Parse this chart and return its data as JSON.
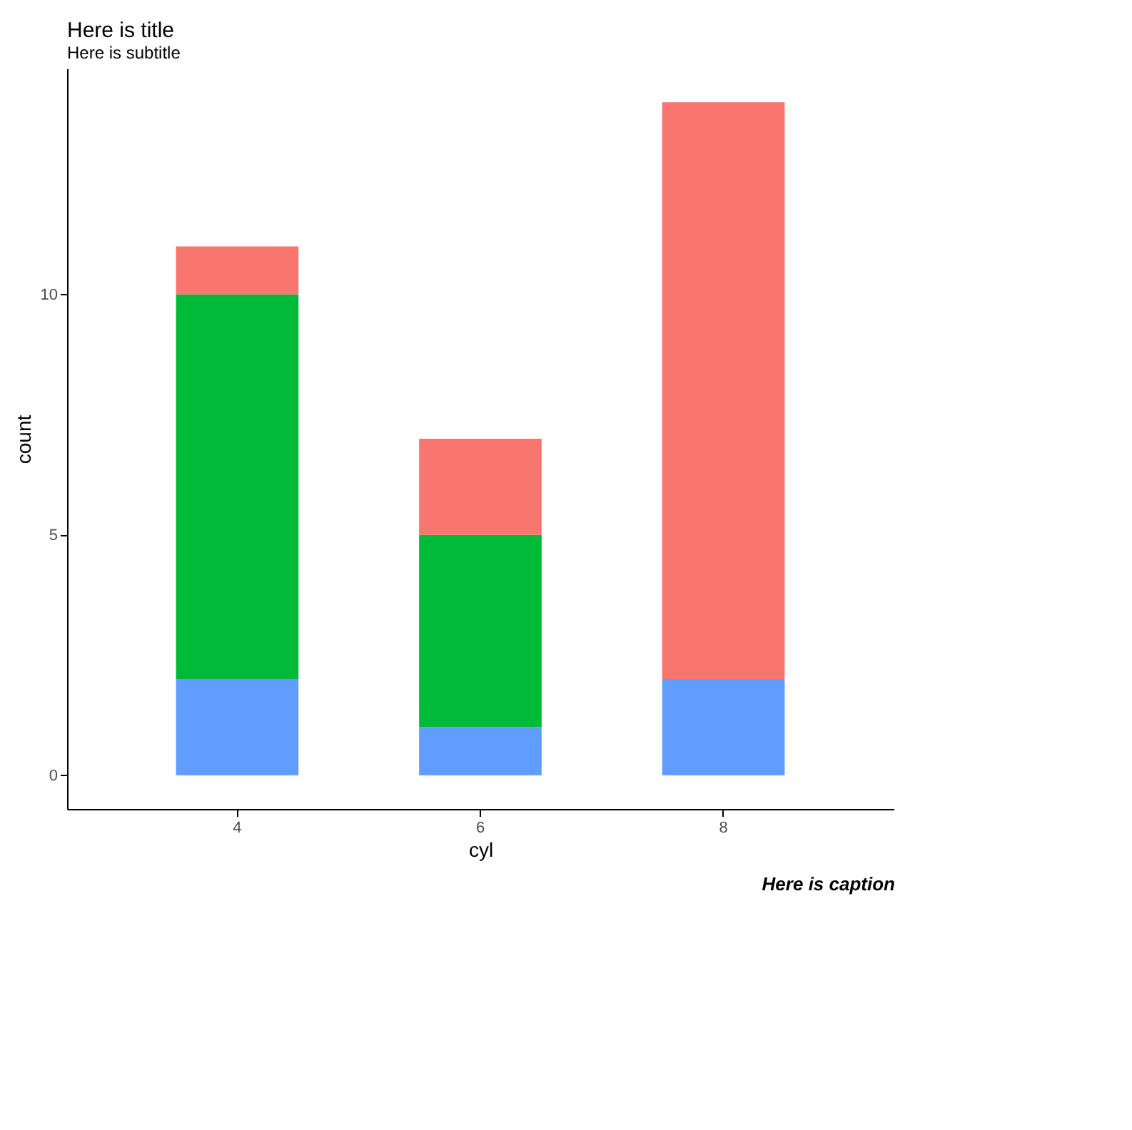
{
  "chart_data": {
    "type": "bar",
    "title": "Here is title",
    "subtitle": "Here is subtitle",
    "xlabel": "cyl",
    "ylabel": "count",
    "annotations": [
      "Here is caption"
    ],
    "categories": [
      "4",
      "6",
      "8"
    ],
    "stacked": true,
    "series": [
      {
        "color": "#619cff",
        "values": [
          2,
          1,
          2
        ]
      },
      {
        "color": "#00ba38",
        "values": [
          8,
          4,
          0
        ]
      },
      {
        "color": "#f8766d",
        "values": [
          1,
          2,
          12
        ]
      }
    ],
    "ylim": [
      -0.7,
      14.7
    ],
    "yticks": [
      0,
      5,
      10
    ]
  }
}
